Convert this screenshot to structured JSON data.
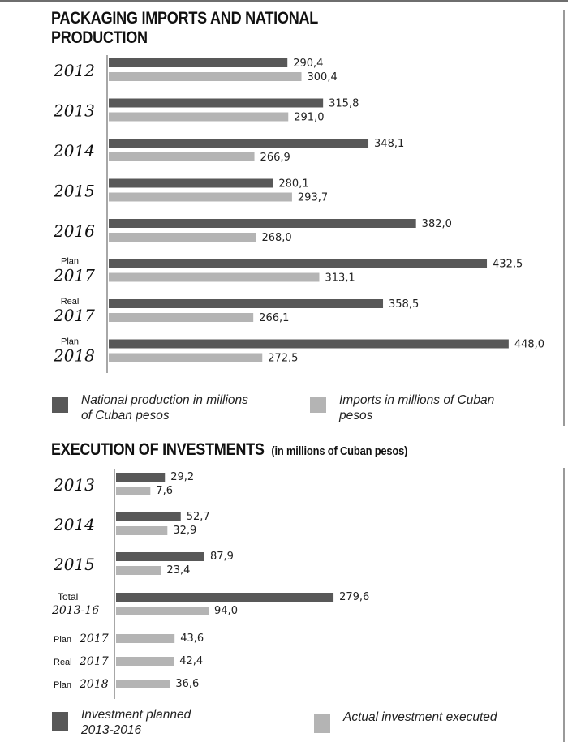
{
  "colors": {
    "dark": "#585858",
    "light": "#b4b4b4",
    "axis": "#8a8a8a"
  },
  "chart_data": [
    {
      "type": "bar",
      "orientation": "horizontal",
      "title": "PACKAGING IMPORTS AND NATIONAL PRODUCTION",
      "title_lines": [
        "PACKAGING IMPORTS AND NATIONAL",
        "PRODUCTION"
      ],
      "categories": [
        {
          "prefix": "",
          "year": "2012"
        },
        {
          "prefix": "",
          "year": "2013"
        },
        {
          "prefix": "",
          "year": "2014"
        },
        {
          "prefix": "",
          "year": "2015"
        },
        {
          "prefix": "",
          "year": "2016"
        },
        {
          "prefix": "Plan",
          "year": "2017"
        },
        {
          "prefix": "Real",
          "year": "2017"
        },
        {
          "prefix": "Plan",
          "year": "2018"
        }
      ],
      "series": [
        {
          "name": "National production in millions of Cuban pesos",
          "legend_lines": [
            "National production in millions",
            "of Cuban pesos"
          ],
          "color": "dark",
          "values": [
            290.4,
            315.8,
            348.1,
            280.1,
            382.0,
            432.5,
            358.5,
            448.0
          ],
          "labels": [
            "290,4",
            "315,8",
            "348,1",
            "280,1",
            "382,0",
            "432,5",
            "358,5",
            "448,0"
          ]
        },
        {
          "name": "Imports in millions of Cuban pesos",
          "legend_lines": [
            "Imports in millions of Cuban",
            "pesos"
          ],
          "color": "light",
          "values": [
            300.4,
            291.0,
            266.9,
            293.7,
            268.0,
            313.1,
            266.1,
            272.5
          ],
          "labels": [
            "300,4",
            "291,0",
            "266,9",
            "293,7",
            "268,0",
            "313,1",
            "266,1",
            "272,5"
          ]
        }
      ],
      "xlabel": "",
      "ylabel": "",
      "grid": false,
      "legend": "bottom"
    },
    {
      "type": "bar",
      "orientation": "horizontal",
      "title": "EXECUTION OF INVESTMENTS",
      "subtitle": "(in millions of Cuban pesos)",
      "categories": [
        {
          "prefix": "",
          "year": "2013",
          "style": "big"
        },
        {
          "prefix": "",
          "year": "2014",
          "style": "big"
        },
        {
          "prefix": "",
          "year": "2015",
          "style": "big"
        },
        {
          "prefix": "Total",
          "year": "2013-16",
          "style": "stacked"
        },
        {
          "prefix": "Plan",
          "year": "2017",
          "style": "inline"
        },
        {
          "prefix": "Real",
          "year": "2017",
          "style": "inline"
        },
        {
          "prefix": "Plan",
          "year": "2018",
          "style": "inline"
        }
      ],
      "series": [
        {
          "name": "Investment planned 2013-2016",
          "legend_lines": [
            "Investment planned",
            "2013-2016"
          ],
          "color": "dark",
          "values": [
            29.2,
            52.7,
            87.9,
            279.6,
            null,
            null,
            null
          ],
          "labels": [
            "29,2",
            "52,7",
            "87,9",
            "279,6",
            null,
            null,
            null
          ]
        },
        {
          "name": "Actual investment executed",
          "legend_lines": [
            "Actual investment executed"
          ],
          "color": "light",
          "values": [
            7.6,
            32.9,
            23.4,
            94.0,
            43.6,
            42.4,
            36.6
          ],
          "labels": [
            "7,6",
            "32,9",
            "23,4",
            "94,0",
            "43,6",
            "42,4",
            "36,6"
          ]
        }
      ],
      "xlabel": "",
      "ylabel": "",
      "grid": false,
      "legend": "bottom"
    }
  ]
}
